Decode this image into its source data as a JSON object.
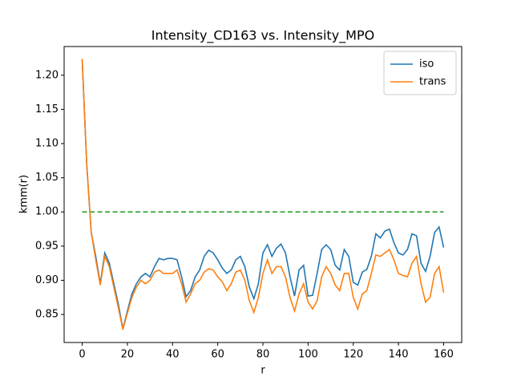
{
  "chart_data": {
    "type": "line",
    "title": "Intensity_CD163 vs. Intensity_MPO",
    "x_label": "r",
    "y_label": "kmm(r)",
    "x": [
      0,
      2,
      4,
      6,
      8,
      10,
      12,
      14,
      16,
      18,
      20,
      22,
      24,
      26,
      28,
      30,
      32,
      34,
      36,
      38,
      40,
      42,
      44,
      46,
      48,
      50,
      52,
      54,
      56,
      58,
      60,
      62,
      64,
      66,
      68,
      70,
      72,
      74,
      76,
      78,
      80,
      82,
      84,
      86,
      88,
      90,
      92,
      94,
      96,
      98,
      100,
      102,
      104,
      106,
      108,
      110,
      112,
      114,
      116,
      118,
      120,
      122,
      124,
      126,
      128,
      130,
      132,
      134,
      136,
      138,
      140,
      142,
      144,
      146,
      148,
      150,
      152,
      154,
      156,
      158,
      160
    ],
    "series": [
      {
        "name": "iso",
        "color": "#1f77b4",
        "values": [
          1.222,
          1.07,
          0.97,
          0.935,
          0.895,
          0.94,
          0.925,
          0.895,
          0.865,
          0.829,
          0.855,
          0.88,
          0.895,
          0.905,
          0.91,
          0.905,
          0.92,
          0.932,
          0.93,
          0.932,
          0.932,
          0.93,
          0.905,
          0.876,
          0.885,
          0.905,
          0.915,
          0.935,
          0.944,
          0.94,
          0.93,
          0.918,
          0.91,
          0.915,
          0.93,
          0.935,
          0.92,
          0.89,
          0.873,
          0.895,
          0.94,
          0.952,
          0.935,
          0.947,
          0.953,
          0.94,
          0.905,
          0.877,
          0.915,
          0.922,
          0.877,
          0.878,
          0.91,
          0.945,
          0.952,
          0.945,
          0.922,
          0.915,
          0.945,
          0.935,
          0.897,
          0.893,
          0.912,
          0.916,
          0.935,
          0.968,
          0.962,
          0.972,
          0.975,
          0.955,
          0.94,
          0.937,
          0.945,
          0.968,
          0.965,
          0.925,
          0.913,
          0.935,
          0.97,
          0.978,
          0.948
        ]
      },
      {
        "name": "trans",
        "color": "#ff7f0e",
        "values": [
          1.224,
          1.07,
          0.97,
          0.93,
          0.893,
          0.935,
          0.92,
          0.89,
          0.86,
          0.828,
          0.852,
          0.875,
          0.89,
          0.9,
          0.895,
          0.9,
          0.912,
          0.915,
          0.91,
          0.91,
          0.91,
          0.915,
          0.895,
          0.868,
          0.88,
          0.895,
          0.9,
          0.912,
          0.917,
          0.915,
          0.905,
          0.898,
          0.885,
          0.895,
          0.912,
          0.915,
          0.9,
          0.87,
          0.853,
          0.875,
          0.91,
          0.93,
          0.91,
          0.92,
          0.92,
          0.905,
          0.875,
          0.855,
          0.88,
          0.895,
          0.868,
          0.858,
          0.87,
          0.905,
          0.92,
          0.91,
          0.893,
          0.885,
          0.91,
          0.91,
          0.875,
          0.858,
          0.88,
          0.885,
          0.91,
          0.937,
          0.935,
          0.94,
          0.945,
          0.93,
          0.91,
          0.907,
          0.905,
          0.925,
          0.935,
          0.895,
          0.868,
          0.875,
          0.91,
          0.92,
          0.882
        ]
      }
    ],
    "reference_line": {
      "x": [
        0,
        160
      ],
      "values": [
        1,
        1
      ],
      "color": "#2ca02c",
      "dashed": true
    },
    "xlim": [
      -8,
      168
    ],
    "ylim": [
      0.809,
      1.242
    ],
    "xticks": [
      0,
      20,
      40,
      60,
      80,
      100,
      120,
      140,
      160
    ],
    "yticks": [
      0.85,
      {
        "value": 0.9,
        "label": "0.90"
      },
      0.95,
      {
        "value": 1.0,
        "label": "1.00"
      },
      1.05,
      {
        "value": 1.1,
        "label": "1.10"
      },
      1.15,
      {
        "value": 1.2,
        "label": "1.20"
      }
    ],
    "legend": "upper right"
  }
}
